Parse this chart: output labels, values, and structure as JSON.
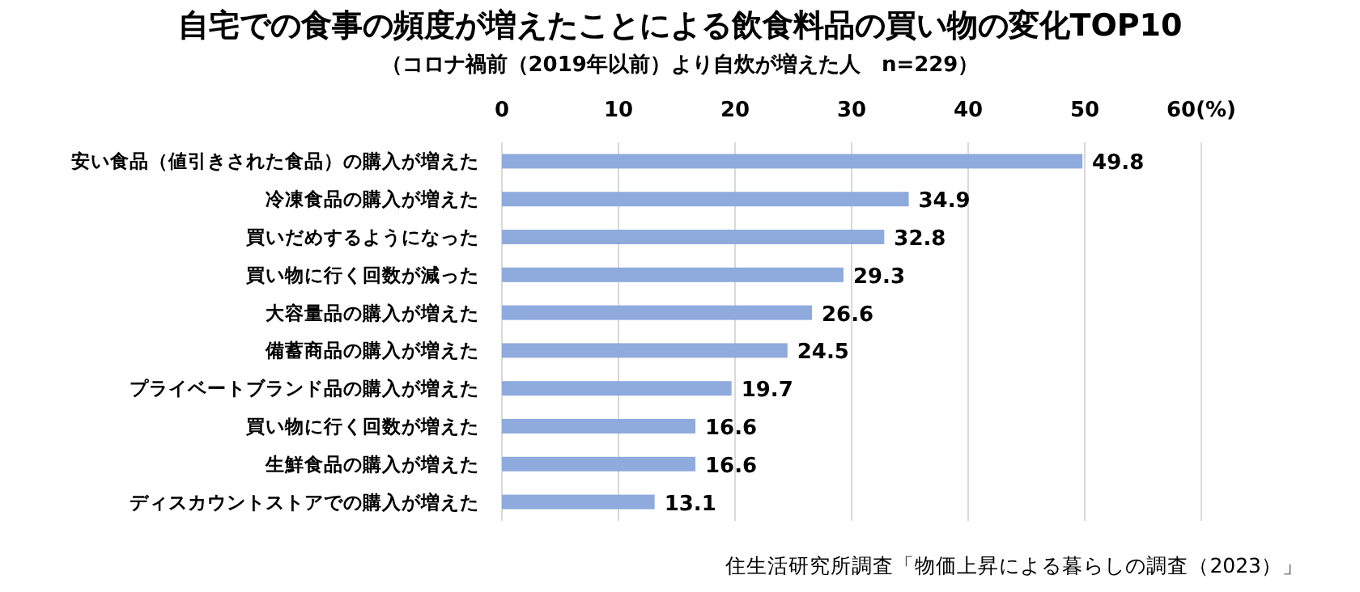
{
  "chart_data": {
    "type": "bar",
    "orientation": "horizontal",
    "title": "自宅での食事の頻度が増えたことによる飲食料品の買い物の変化TOP10",
    "subtitle": "（コロナ禍前（2019年以前）より自炊が増えた人　n=229）",
    "categories": [
      "安い食品（値引きされた食品）の購入が増えた",
      "冷凍食品の購入が増えた",
      "買いだめするようになった",
      "買い物に行く回数が減った",
      "大容量品の購入が増えた",
      "備蓄商品の購入が増えた",
      "プライベートブランド品の購入が増えた",
      "買い物に行く回数が増えた",
      "生鮮食品の購入が増えた",
      "ディスカウントストアでの購入が増えた"
    ],
    "values": [
      49.8,
      34.9,
      32.8,
      29.3,
      26.6,
      24.5,
      19.7,
      16.6,
      16.6,
      13.1
    ],
    "color": "#8faadc",
    "data_labels": true,
    "grid": "x",
    "xlim": [
      0,
      60
    ],
    "xticks": [
      0,
      10,
      20,
      30,
      40,
      50,
      {
        "value": 60,
        "label": "60(%)"
      }
    ],
    "annotations": [
      "住生活研究所調査「物価上昇による暮らしの調査（2023）」"
    ]
  }
}
